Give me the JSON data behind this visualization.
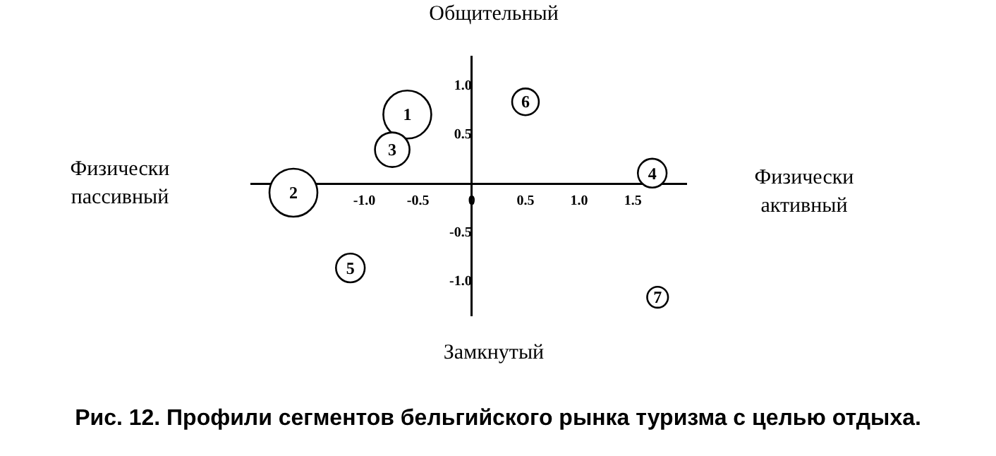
{
  "chart_data": {
    "type": "bubble",
    "title": "Рис. 12. Профили сегментов бельгийского рынка туризма с целью отдыха.",
    "x": [
      -0.6,
      -1.66,
      -0.74,
      1.68,
      -1.13,
      0.5,
      1.73
    ],
    "series": [
      {
        "color": "#000000",
        "values": [
          0.71,
          -0.09,
          0.35,
          0.11,
          -0.86,
          0.84,
          -1.16
        ],
        "sizes": [
          1,
          1,
          0.52,
          0.36,
          0.36,
          0.31,
          0.19
        ]
      }
    ],
    "xlim": [
      -2.05,
      2.0
    ],
    "ylim": [
      -1.35,
      1.3
    ],
    "xticks": [
      {
        "value": -1,
        "label": "-1.0"
      },
      {
        "value": -0.5,
        "label": "-0.5"
      },
      0,
      {
        "value": 0.5,
        "label": "0.5"
      },
      {
        "value": 1,
        "label": "1.0"
      },
      {
        "value": 1.5,
        "label": "1.5"
      }
    ],
    "yticks": [
      {
        "value": -1,
        "label": "-1.0"
      },
      {
        "value": -0.5,
        "label": "-0.5"
      },
      {
        "value": 0.5,
        "label": "0.5"
      },
      {
        "value": 1,
        "label": "1.0"
      }
    ],
    "annotations": [
      "Общительный",
      "Замкнутый",
      "Физически пассивный",
      "Физически активный",
      {
        "text": "1",
        "x": -0.6,
        "y": 0.71
      },
      {
        "text": "2",
        "x": -1.66,
        "y": -0.09
      },
      {
        "text": "3",
        "x": -0.74,
        "y": 0.35
      },
      {
        "text": "4",
        "x": 1.68,
        "y": 0.11
      },
      {
        "text": "5",
        "x": -1.13,
        "y": -0.86
      },
      {
        "text": "6",
        "x": 0.5,
        "y": 0.84
      },
      {
        "text": "7",
        "x": 1.73,
        "y": -1.16
      }
    ],
    "grid": false,
    "legend": false,
    "marker": "circle"
  }
}
